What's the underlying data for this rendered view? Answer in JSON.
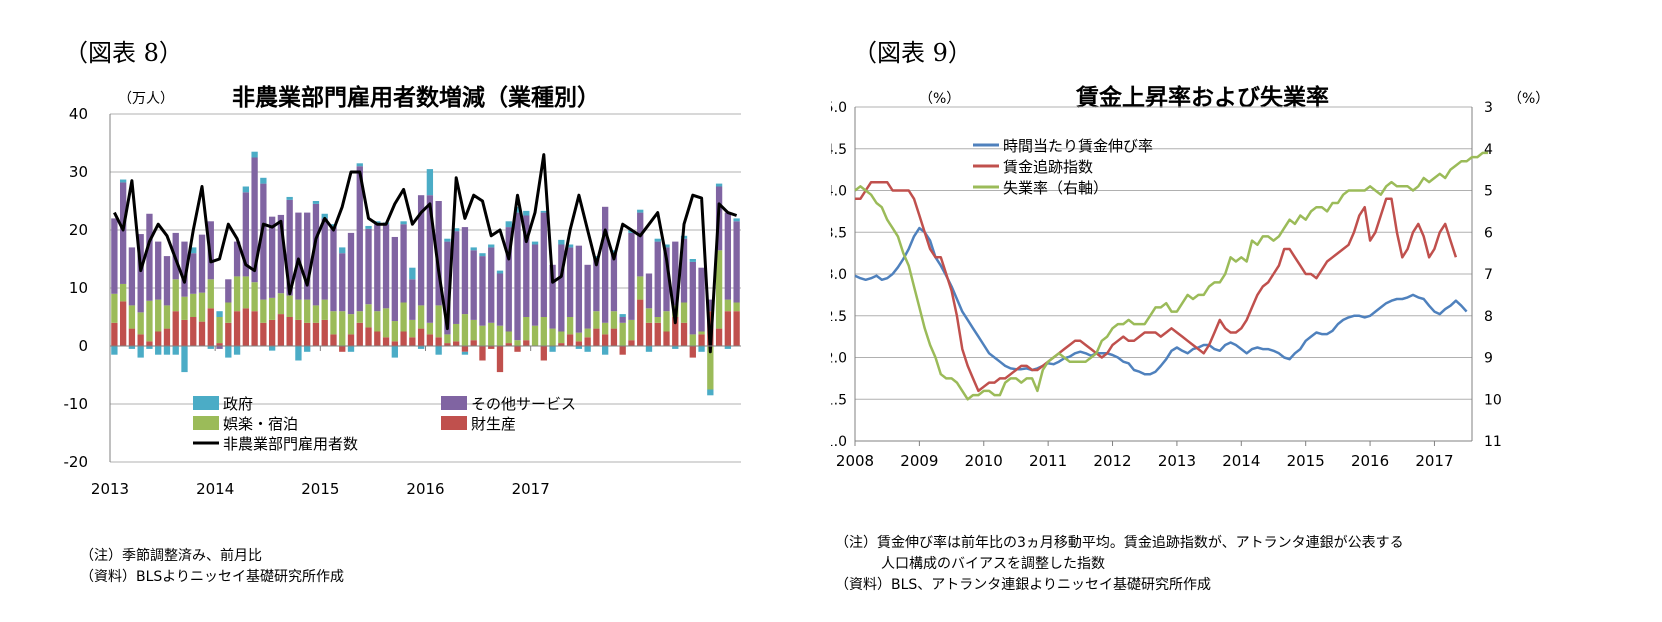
{
  "chart_data": [
    {
      "type": "bar",
      "stacked": true,
      "figure_label": "（図表 8）",
      "title": "非農業部門雇用者数増減（業種別）",
      "unit_label": "（万人）",
      "ylim": [
        -20,
        40
      ],
      "yticks": [
        -20,
        -10,
        0,
        10,
        20,
        30,
        40
      ],
      "xtick_labels": [
        "2013",
        "2014",
        "2015",
        "2016",
        "2017"
      ],
      "months_per_year": 12,
      "legend": {
        "government": "政府",
        "other_services": "その他サービス",
        "leisure": "娯楽・宿泊",
        "goods": "財生産",
        "total": "非農業部門雇用者数"
      },
      "colors": {
        "government": "#4bacc6",
        "other_services": "#8064a2",
        "leisure": "#9bbb59",
        "goods": "#c0504d",
        "total": "#000000"
      },
      "series": {
        "goods": [
          4,
          7.7,
          3,
          2,
          0.8,
          2.5,
          3,
          6,
          4.5,
          5,
          4.2,
          6.5,
          0.5,
          4,
          6,
          6.5,
          6,
          4,
          4.5,
          5.5,
          5,
          4.5,
          4,
          4,
          4.5,
          2,
          -1,
          2,
          4,
          3.2,
          2.5,
          1.5,
          0.8,
          2.5,
          1.5,
          3,
          2,
          1.5,
          0.5,
          0.8,
          -1,
          1,
          -2.5,
          -0.5,
          -4.5,
          0.5,
          -1,
          1,
          0,
          -2.5,
          0,
          0.5,
          2,
          0.8,
          1.5,
          3,
          2,
          3,
          -1.5,
          1,
          8,
          4,
          4,
          2.5,
          5,
          4,
          -2,
          2,
          6,
          3,
          6,
          6
        ],
        "leisure": [
          5,
          3,
          4,
          3.8,
          7,
          5.5,
          4,
          5.5,
          4,
          4,
          5,
          5,
          4.5,
          3.5,
          6,
          5.5,
          5,
          4,
          3.8,
          3.6,
          3.7,
          3.5,
          4,
          3,
          3.5,
          4,
          6,
          3.5,
          2,
          4,
          3.5,
          5,
          3.5,
          5,
          3,
          4,
          2,
          5.5,
          1.5,
          3,
          5.5,
          3.5,
          3.5,
          4,
          3.5,
          2,
          1,
          4,
          3.5,
          5,
          3,
          2,
          3,
          1.5,
          1.5,
          3,
          2,
          3,
          4,
          3.5,
          4,
          2.5,
          1,
          3.5,
          2,
          3.5,
          2,
          0.5,
          -7.5,
          13.5,
          2,
          1.5
        ],
        "other_services": [
          13,
          17.5,
          10,
          13.5,
          15,
          10,
          8.5,
          8,
          9.5,
          7,
          10,
          10,
          -0.5,
          4,
          6,
          14.5,
          21.5,
          20,
          14,
          13.5,
          16.5,
          15,
          15,
          17.5,
          14,
          14.5,
          10,
          14,
          25,
          13,
          15,
          14.5,
          14.5,
          13.5,
          7,
          19,
          22,
          18,
          16,
          16,
          15,
          12,
          12,
          13,
          9,
          18,
          22,
          17.5,
          14,
          18,
          11,
          15,
          12,
          15,
          11,
          9,
          20,
          10,
          1,
          15,
          11,
          6,
          13,
          11,
          11,
          11,
          12.5,
          11,
          2,
          11,
          15,
          14
        ],
        "government": [
          -1.5,
          0.5,
          -0.5,
          -2,
          -0.5,
          -1.5,
          -1.5,
          -1.5,
          -4.5,
          1,
          0,
          -0.5,
          1,
          -2,
          -1.5,
          1,
          1,
          1,
          -0.8,
          0,
          0.5,
          -2.5,
          -1,
          0.5,
          0.8,
          0.5,
          1,
          -1,
          0.5,
          0.5,
          0.5,
          0.3,
          -2,
          0.5,
          2,
          -0.5,
          4.5,
          -1.5,
          0.5,
          0.5,
          -0.5,
          0.5,
          0.5,
          0.5,
          0.5,
          1,
          1,
          0.8,
          0.5,
          0.3,
          -1,
          0.8,
          0.5,
          -0.5,
          -1,
          0.5,
          -1.5,
          0.5,
          0.5,
          0.5,
          0.5,
          -1,
          0.5,
          0.5,
          -0.5,
          0.5,
          0.5,
          -1,
          -1,
          0.5,
          -0.5,
          0.5
        ],
        "total": [
          23,
          20,
          28.5,
          13,
          18,
          21,
          19,
          15,
          11,
          20,
          27.5,
          14.5,
          15,
          21,
          18.5,
          14,
          13,
          21,
          20.5,
          21.5,
          9,
          15,
          10.5,
          18.5,
          22,
          20,
          24,
          30,
          30,
          22,
          21,
          21,
          24.5,
          27,
          21,
          23,
          24.5,
          13,
          3,
          29,
          22,
          26,
          25,
          19,
          20,
          15,
          26,
          18,
          23,
          33,
          11,
          12,
          20,
          26,
          20,
          14,
          20,
          15,
          21,
          20,
          19,
          21,
          23,
          15,
          4,
          21,
          26,
          25.5,
          -1,
          24.5,
          23,
          22.5
        ],
        "total_line": [
          23,
          20,
          28.5,
          13,
          18,
          21,
          19,
          15,
          11,
          20,
          27.5,
          14.5,
          15,
          21,
          18.5,
          14,
          13,
          21,
          20.5,
          21.5,
          9,
          15,
          10.5,
          18.5,
          22,
          20,
          24,
          30,
          30,
          22,
          21,
          21,
          24.5,
          27,
          21,
          23,
          24.5,
          13,
          3,
          29,
          22,
          26,
          25,
          19,
          20,
          15,
          26,
          18,
          23,
          33,
          11,
          12,
          20,
          26,
          20,
          14,
          20,
          15,
          21,
          20,
          19,
          21,
          23,
          15,
          4,
          21,
          26,
          25.5,
          -1,
          24.5,
          23,
          22.5
        ]
      },
      "notes": [
        "（注）季節調整済み、前月比",
        "（資料）BLSよりニッセイ基礎研究所作成"
      ]
    },
    {
      "type": "line",
      "figure_label": "（図表 9）",
      "title": "賃金上昇率および失業率",
      "unit_left": "（%）",
      "unit_right": "（%）",
      "ylim_left": [
        1.0,
        5.0
      ],
      "yticks_left": [
        "1.0",
        "1.5",
        "2.0",
        "2.5",
        "3.0",
        "3.5",
        "4.0",
        "4.5",
        "5.0"
      ],
      "ylim_right_inverted": [
        3,
        11
      ],
      "yticks_right": [
        "3",
        "4",
        "5",
        "6",
        "7",
        "8",
        "9",
        "10",
        "11"
      ],
      "xtick_labels": [
        "2008",
        "2009",
        "2010",
        "2011",
        "2012",
        "2013",
        "2014",
        "2015",
        "2016",
        "2017"
      ],
      "x_start": 2008,
      "months_per_year": 12,
      "series": [
        {
          "key": "hourly_wage",
          "name": "時間当たり賃金伸び率",
          "color": "#4f81bd",
          "values": [
            2.98,
            2.95,
            2.93,
            2.95,
            2.98,
            2.93,
            2.95,
            3.0,
            3.08,
            3.18,
            3.3,
            3.45,
            3.55,
            3.5,
            3.4,
            3.2,
            3.1,
            2.98,
            2.85,
            2.7,
            2.55,
            2.45,
            2.35,
            2.25,
            2.15,
            2.05,
            2.0,
            1.95,
            1.9,
            1.87,
            1.86,
            1.86,
            1.87,
            1.85,
            1.87,
            1.9,
            1.93,
            1.92,
            1.95,
            1.99,
            2.01,
            2.05,
            2.07,
            2.05,
            2.02,
            2.05,
            2.05,
            2.05,
            2.03,
            2.0,
            1.95,
            1.93,
            1.85,
            1.83,
            1.8,
            1.8,
            1.83,
            1.9,
            1.98,
            2.08,
            2.12,
            2.08,
            2.05,
            2.1,
            2.12,
            2.15,
            2.15,
            2.1,
            2.08,
            2.15,
            2.18,
            2.15,
            2.1,
            2.05,
            2.1,
            2.12,
            2.1,
            2.1,
            2.08,
            2.05,
            2.0,
            1.98,
            2.05,
            2.1,
            2.2,
            2.25,
            2.3,
            2.28,
            2.28,
            2.32,
            2.4,
            2.45,
            2.48,
            2.5,
            2.5,
            2.48,
            2.5,
            2.55,
            2.6,
            2.65,
            2.68,
            2.7,
            2.7,
            2.72,
            2.75,
            2.72,
            2.7,
            2.62,
            2.55,
            2.52,
            2.58,
            2.62,
            2.68,
            2.62,
            2.55
          ]
        },
        {
          "key": "wage_tracker",
          "name": "賃金追跡指数",
          "color": "#c0504d",
          "values": [
            3.9,
            3.9,
            4.0,
            4.1,
            4.1,
            4.1,
            4.1,
            4.0,
            4.0,
            4.0,
            4.0,
            3.9,
            3.7,
            3.5,
            3.3,
            3.2,
            3.2,
            3.0,
            2.8,
            2.5,
            2.1,
            1.9,
            1.75,
            1.6,
            1.65,
            1.7,
            1.7,
            1.75,
            1.75,
            1.8,
            1.85,
            1.9,
            1.9,
            1.85,
            1.85,
            1.9,
            1.95,
            2.0,
            2.05,
            2.1,
            2.15,
            2.2,
            2.2,
            2.15,
            2.1,
            2.05,
            2.0,
            2.05,
            2.15,
            2.2,
            2.25,
            2.2,
            2.2,
            2.25,
            2.3,
            2.3,
            2.3,
            2.25,
            2.3,
            2.35,
            2.3,
            2.25,
            2.2,
            2.15,
            2.1,
            2.05,
            2.15,
            2.3,
            2.45,
            2.35,
            2.3,
            2.3,
            2.35,
            2.45,
            2.6,
            2.75,
            2.85,
            2.9,
            3.0,
            3.1,
            3.3,
            3.3,
            3.2,
            3.1,
            3.0,
            3.0,
            2.95,
            3.05,
            3.15,
            3.2,
            3.25,
            3.3,
            3.35,
            3.5,
            3.7,
            3.8,
            3.4,
            3.5,
            3.7,
            3.9,
            3.9,
            3.5,
            3.2,
            3.3,
            3.5,
            3.6,
            3.45,
            3.2,
            3.3,
            3.5,
            3.6,
            3.4,
            3.2
          ]
        },
        {
          "key": "unemployment",
          "name": "失業率（右軸）",
          "color": "#9bbb59",
          "axis": "right",
          "values": [
            5.0,
            4.9,
            5.0,
            5.1,
            5.3,
            5.4,
            5.7,
            5.9,
            6.1,
            6.5,
            6.8,
            7.3,
            7.8,
            8.3,
            8.7,
            9.0,
            9.4,
            9.5,
            9.5,
            9.6,
            9.8,
            10.0,
            9.9,
            9.9,
            9.8,
            9.8,
            9.9,
            9.9,
            9.6,
            9.5,
            9.5,
            9.6,
            9.5,
            9.5,
            9.8,
            9.3,
            9.1,
            9.0,
            8.9,
            9.0,
            9.1,
            9.1,
            9.1,
            9.1,
            9.0,
            8.9,
            8.6,
            8.5,
            8.3,
            8.2,
            8.2,
            8.1,
            8.2,
            8.2,
            8.2,
            8.0,
            7.8,
            7.8,
            7.7,
            7.9,
            7.9,
            7.7,
            7.5,
            7.6,
            7.5,
            7.5,
            7.3,
            7.2,
            7.2,
            7.0,
            6.6,
            6.7,
            6.6,
            6.7,
            6.2,
            6.3,
            6.1,
            6.1,
            6.2,
            6.1,
            5.9,
            5.7,
            5.8,
            5.6,
            5.7,
            5.5,
            5.4,
            5.4,
            5.5,
            5.3,
            5.3,
            5.1,
            5.0,
            5.0,
            5.0,
            5.0,
            4.9,
            5.0,
            5.1,
            4.9,
            4.8,
            4.9,
            4.9,
            4.9,
            5.0,
            4.9,
            4.7,
            4.8,
            4.7,
            4.6,
            4.7,
            4.5,
            4.4,
            4.3,
            4.3,
            4.2,
            4.2,
            4.1,
            4.1
          ]
        }
      ],
      "notes": [
        "（注）賃金伸び率は前年比の3ヵ月移動平均。賃金追跡指数が、アトランタ連銀が公表する",
        "人口構成のバイアスを調整した指数",
        "（資料）BLS、アトランタ連銀よりニッセイ基礎研究所作成"
      ]
    }
  ]
}
